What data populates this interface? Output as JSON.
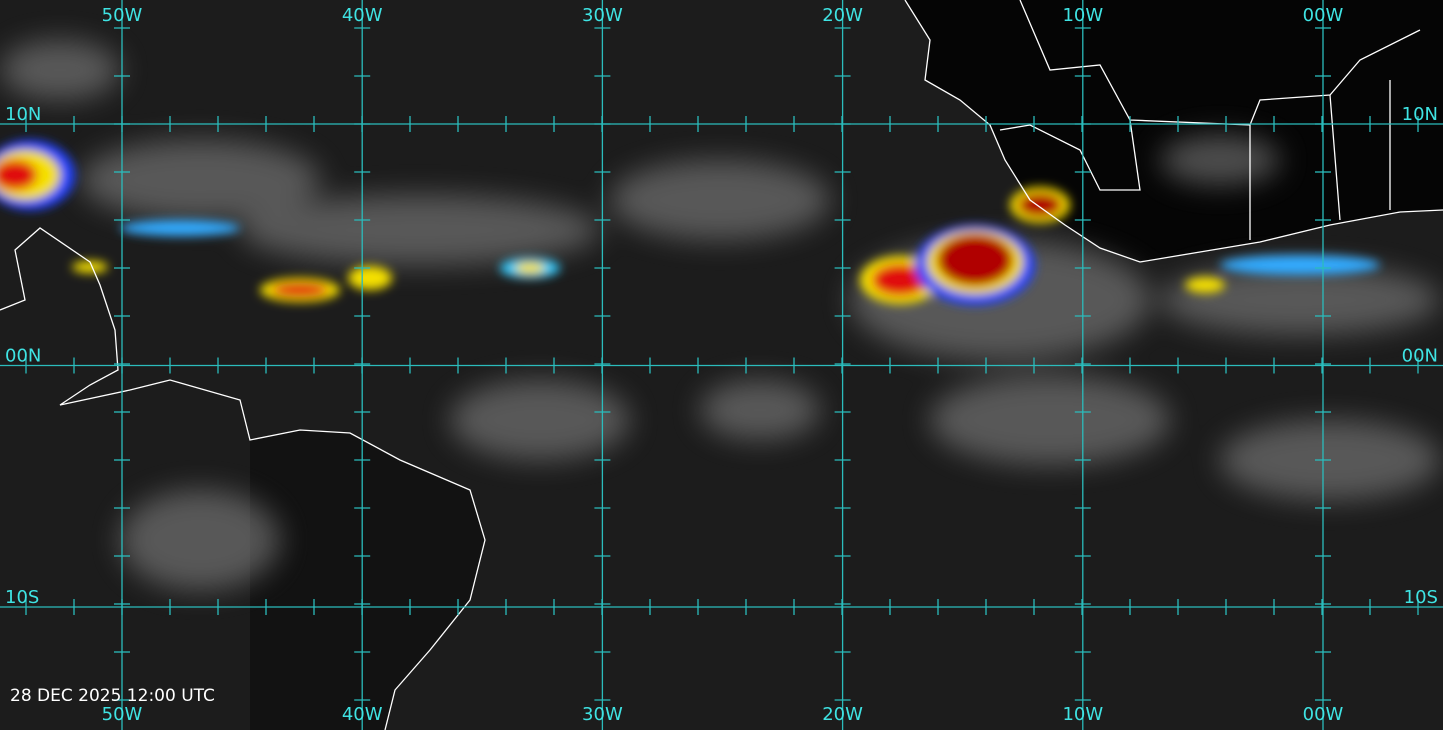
{
  "longitude_labels_top": [
    "50W",
    "40W",
    "30W",
    "20W",
    "10W",
    "00W"
  ],
  "longitude_labels_bottom": [
    "50W",
    "40W",
    "30W",
    "20W",
    "10W",
    "00W"
  ],
  "latitude_labels_left": [
    "10N",
    "00N",
    "10S"
  ],
  "latitude_labels_right": [
    "10N",
    "00N",
    "10S"
  ],
  "timestamp": "28 DEC 2025 12:00 UTC"
}
